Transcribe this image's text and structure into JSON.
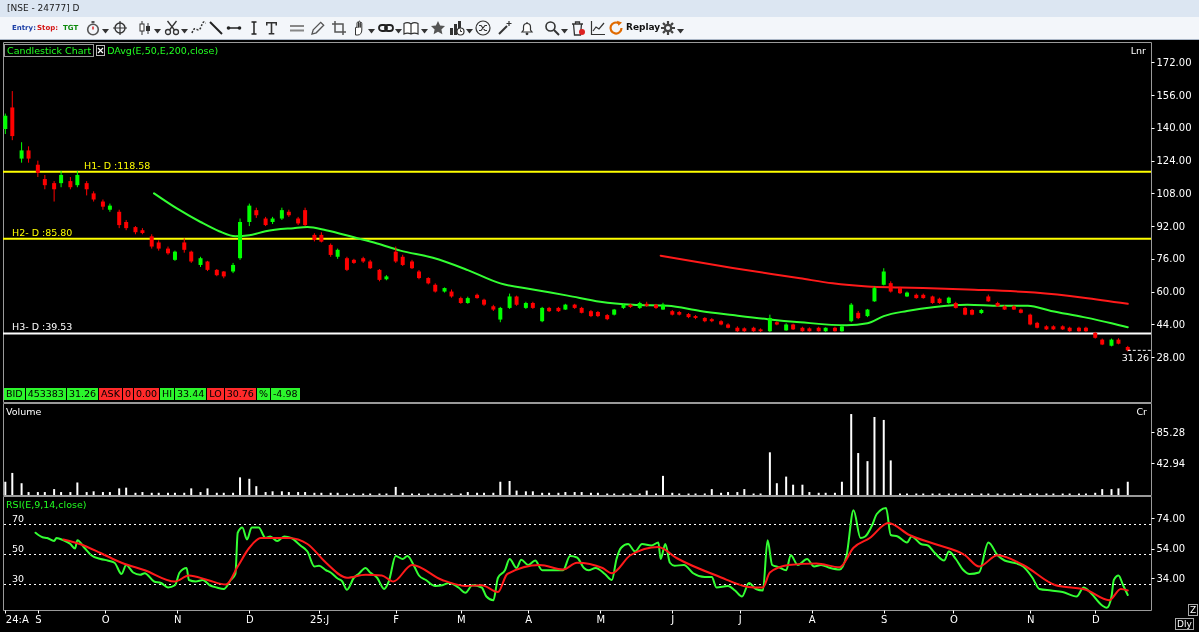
{
  "chart_data": [
    {
      "type": "candlestick",
      "title": "[NSE - 24777] D",
      "x": [
        "2024-08-19",
        "2024-08-22",
        "2024-08-26",
        "2024-08-29",
        "2024-09-02",
        "2024-09-05",
        "2024-09-09",
        "2024-09-12",
        "2024-09-16",
        "2024-09-19",
        "2024-09-23",
        "2024-09-26",
        "2024-09-30",
        "2024-10-03",
        "2024-10-07",
        "2024-10-10",
        "2024-10-14",
        "2024-10-17",
        "2024-10-21",
        "2024-10-24",
        "2024-10-28",
        "2024-10-31",
        "2024-11-04",
        "2024-11-07",
        "2024-11-11",
        "2024-11-14",
        "2024-11-18",
        "2024-11-21",
        "2024-11-25",
        "2024-11-28",
        "2024-12-02",
        "2024-12-05",
        "2024-12-09",
        "2024-12-12",
        "2024-12-16",
        "2024-12-19",
        "2024-12-23",
        "2024-12-26",
        "2024-12-30",
        "2025-01-02",
        "2025-01-06",
        "2025-01-09",
        "2025-01-13",
        "2025-01-16",
        "2025-01-20",
        "2025-01-23",
        "2025-01-27",
        "2025-01-30",
        "2025-02-03",
        "2025-02-06",
        "2025-02-10",
        "2025-02-13",
        "2025-02-17",
        "2025-02-20",
        "2025-02-24",
        "2025-02-27",
        "2025-03-03",
        "2025-03-06",
        "2025-03-10",
        "2025-03-13",
        "2025-03-17",
        "2025-03-20",
        "2025-03-24",
        "2025-03-27",
        "2025-03-31",
        "2025-04-03",
        "2025-04-07",
        "2025-04-10",
        "2025-04-14",
        "2025-04-17",
        "2025-04-21",
        "2025-04-24",
        "2025-04-28",
        "2025-05-01",
        "2025-05-05",
        "2025-05-08",
        "2025-05-12",
        "2025-05-15",
        "2025-05-19",
        "2025-05-22",
        "2025-05-26",
        "2025-05-29",
        "2025-06-02",
        "2025-06-05",
        "2025-06-09",
        "2025-06-12",
        "2025-06-16",
        "2025-06-19",
        "2025-06-23",
        "2025-06-26",
        "2025-06-30",
        "2025-07-03",
        "2025-07-07",
        "2025-07-10",
        "2025-07-14",
        "2025-07-17",
        "2025-07-21",
        "2025-07-24",
        "2025-07-28",
        "2025-07-31",
        "2025-08-04",
        "2025-08-07",
        "2025-08-11",
        "2025-08-14",
        "2025-08-18",
        "2025-08-21",
        "2025-08-25",
        "2025-08-28",
        "2025-09-01",
        "2025-09-04",
        "2025-09-08",
        "2025-09-11",
        "2025-09-15",
        "2025-09-18",
        "2025-09-22",
        "2025-09-25",
        "2025-09-29",
        "2025-10-02",
        "2025-10-06",
        "2025-10-09",
        "2025-10-13",
        "2025-10-16",
        "2025-10-20",
        "2025-10-23",
        "2025-10-27",
        "2025-10-30",
        "2025-11-03",
        "2025-11-06",
        "2025-11-10",
        "2025-11-13",
        "2025-11-17",
        "2025-11-20",
        "2025-11-24",
        "2025-11-27",
        "2025-12-01",
        "2025-12-04",
        "2025-12-08",
        "2025-12-11",
        "2025-12-15"
      ],
      "ohlc": [
        [
          139.5,
          147,
          137,
          146
        ],
        [
          150,
          158,
          134,
          136
        ],
        [
          125,
          133,
          123,
          129
        ],
        [
          129,
          131,
          123,
          125
        ],
        [
          122,
          124,
          116,
          118
        ],
        [
          115,
          117,
          110,
          112
        ],
        [
          113,
          114,
          104,
          110
        ],
        [
          113,
          119,
          111,
          117
        ],
        [
          114,
          116,
          110,
          111
        ],
        [
          112,
          119,
          111,
          117
        ],
        [
          113,
          114,
          107,
          110
        ],
        [
          108,
          109,
          104,
          105
        ],
        [
          104,
          105,
          100,
          101.5
        ],
        [
          100,
          103,
          99,
          102
        ],
        [
          99,
          100,
          91,
          92.5
        ],
        [
          94,
          95,
          90,
          91
        ],
        [
          91.5,
          92,
          88,
          89
        ],
        [
          90,
          91,
          88,
          88.6
        ],
        [
          87,
          88,
          81,
          82
        ],
        [
          84,
          85,
          80,
          81
        ],
        [
          81,
          82,
          78,
          78.7
        ],
        [
          75.5,
          80,
          75,
          79.5
        ],
        [
          84,
          86,
          79,
          80.4
        ],
        [
          79.5,
          80,
          74,
          74.7
        ],
        [
          73,
          77,
          72,
          76.3
        ],
        [
          74.7,
          75,
          70,
          70.6
        ],
        [
          70.6,
          71,
          67.5,
          68
        ],
        [
          69.8,
          70,
          66.5,
          67.4
        ],
        [
          69.8,
          74,
          69,
          73
        ],
        [
          76.3,
          95.7,
          75.5,
          94
        ],
        [
          94,
          103,
          92,
          102
        ],
        [
          99.8,
          101,
          96,
          97.3
        ],
        [
          95.7,
          96.5,
          92,
          92.5
        ],
        [
          94,
          96.5,
          93,
          95.7
        ],
        [
          95.7,
          101,
          95,
          99.8
        ],
        [
          99,
          100,
          96.5,
          97.3
        ],
        [
          95.7,
          96.5,
          92.5,
          93.3
        ],
        [
          99.8,
          101,
          92,
          92.5
        ],
        [
          87.7,
          88.5,
          84.5,
          85.2
        ],
        [
          87.7,
          89,
          84,
          84.4
        ],
        [
          82.8,
          83.5,
          77,
          77.9
        ],
        [
          77,
          81,
          76,
          80.4
        ],
        [
          76.3,
          77,
          70,
          70.6
        ],
        [
          75.5,
          76,
          73.5,
          74
        ],
        [
          76.3,
          77,
          74,
          74.7
        ],
        [
          74.7,
          75.5,
          71,
          71.4
        ],
        [
          70.6,
          71,
          65,
          65.7
        ],
        [
          66,
          68,
          65.5,
          67.4
        ],
        [
          79.5,
          82,
          74,
          74.7
        ],
        [
          77,
          78,
          72.5,
          73
        ],
        [
          74.7,
          75.5,
          71,
          71.4
        ],
        [
          69.8,
          70.5,
          66,
          66.6
        ],
        [
          66.6,
          67,
          63.5,
          64
        ],
        [
          63.3,
          64,
          59.5,
          60
        ],
        [
          60,
          62,
          59.5,
          61.7
        ],
        [
          60,
          61,
          57,
          57.6
        ],
        [
          56.8,
          57.5,
          54,
          54.4
        ],
        [
          54.4,
          57.5,
          54,
          56.8
        ],
        [
          58.4,
          59,
          56.5,
          56.8
        ],
        [
          56,
          56.5,
          53,
          53.6
        ],
        [
          52.8,
          53.5,
          50.5,
          51.2
        ],
        [
          46.3,
          52.5,
          45,
          52
        ],
        [
          52,
          59,
          51.5,
          57.6
        ],
        [
          57.6,
          58,
          53,
          53.6
        ],
        [
          52,
          55,
          51.5,
          54.4
        ],
        [
          54.4,
          55,
          51.5,
          52
        ],
        [
          45.5,
          52.5,
          45,
          52
        ],
        [
          52,
          52.5,
          50,
          50.4
        ],
        [
          52,
          52.5,
          50,
          50.4
        ],
        [
          51.2,
          54,
          51,
          53.6
        ],
        [
          53.6,
          54,
          51.5,
          52
        ],
        [
          52,
          52.5,
          49.3,
          49.6
        ],
        [
          50.4,
          51,
          47.5,
          48
        ],
        [
          50,
          50.5,
          47.5,
          48
        ],
        [
          48.5,
          49,
          46,
          46.5
        ],
        [
          48.7,
          51.5,
          48.3,
          51.2
        ],
        [
          52,
          54,
          51.5,
          53.6
        ],
        [
          53.6,
          54,
          52,
          52.5
        ],
        [
          52,
          55,
          51.5,
          54.4
        ],
        [
          54,
          55,
          52.5,
          53
        ],
        [
          53.6,
          54,
          51.5,
          52
        ],
        [
          51.2,
          54.5,
          51,
          53.6
        ],
        [
          50.4,
          51,
          48.3,
          48.7
        ],
        [
          50,
          50.5,
          48.3,
          48.7
        ],
        [
          49,
          49.5,
          47,
          47.5
        ],
        [
          48,
          48.5,
          46.5,
          47.1
        ],
        [
          47.1,
          47.5,
          45,
          45.5
        ],
        [
          46.5,
          47,
          45,
          45.5
        ],
        [
          45.5,
          46,
          43.5,
          43.9
        ],
        [
          43.9,
          44.5,
          42,
          42.3
        ],
        [
          42.3,
          43,
          40.3,
          40.6
        ],
        [
          42,
          42.5,
          40.3,
          40.6
        ],
        [
          42.3,
          42.8,
          40.3,
          40.6
        ],
        [
          41.5,
          42,
          40.2,
          40.6
        ],
        [
          40.6,
          48.7,
          40.2,
          47.1
        ],
        [
          45,
          45.5,
          43.5,
          43.9
        ],
        [
          41,
          44.5,
          40.8,
          43.9
        ],
        [
          43.9,
          44.3,
          41.2,
          41.5
        ],
        [
          42.3,
          42.8,
          40.4,
          40.6
        ],
        [
          42,
          42.5,
          40.4,
          40.6
        ],
        [
          42.3,
          42.8,
          40.4,
          40.6
        ],
        [
          40.6,
          42.5,
          40.3,
          42.3
        ],
        [
          42.3,
          42.8,
          40.4,
          40.6
        ],
        [
          40.6,
          43.5,
          40.3,
          43
        ],
        [
          45.5,
          54.4,
          45,
          53.6
        ],
        [
          49.6,
          50.5,
          46.5,
          47
        ],
        [
          48,
          51.5,
          47.5,
          51.2
        ],
        [
          55.2,
          62.5,
          55,
          61.7
        ],
        [
          63.3,
          71.4,
          63,
          69.8
        ],
        [
          64.1,
          65,
          59.5,
          60
        ],
        [
          61.7,
          62.3,
          58.8,
          59.2
        ],
        [
          57.6,
          60,
          57.3,
          59.5
        ],
        [
          58.4,
          59,
          56.5,
          56.8
        ],
        [
          58.4,
          59,
          56.5,
          56.8
        ],
        [
          57.6,
          58,
          54,
          54.4
        ],
        [
          56.5,
          57,
          54,
          54.4
        ],
        [
          54.4,
          57.5,
          54,
          57
        ],
        [
          54.4,
          55,
          51.7,
          52
        ],
        [
          52,
          52.5,
          48.4,
          48.7
        ],
        [
          51,
          51.5,
          48.4,
          48.7
        ],
        [
          49.5,
          51.5,
          49,
          51
        ],
        [
          57.6,
          58.5,
          55,
          55.2
        ],
        [
          54.4,
          55,
          52.5,
          52.8
        ],
        [
          52.8,
          53.3,
          51,
          51.2
        ],
        [
          52.8,
          53.3,
          51,
          51.2
        ],
        [
          51.2,
          51.7,
          49.3,
          49.6
        ],
        [
          48.7,
          49.2,
          43.5,
          43.9
        ],
        [
          44.7,
          45.2,
          42,
          42.3
        ],
        [
          43,
          43.5,
          41.2,
          41.5
        ],
        [
          43,
          43.5,
          41.2,
          41.5
        ],
        [
          43,
          43.5,
          41.2,
          41.5
        ],
        [
          42.3,
          42.8,
          40.3,
          40.6
        ],
        [
          42.3,
          42.8,
          40.3,
          40.6
        ],
        [
          42.3,
          42.8,
          40.3,
          40.6
        ],
        [
          39.8,
          40.3,
          37,
          37.4
        ],
        [
          36.5,
          37,
          33.8,
          34.1
        ],
        [
          33.5,
          37,
          33.2,
          36.5
        ],
        [
          36.5,
          37.2,
          34.2,
          34.5
        ],
        [
          32.9,
          33.44,
          30.76,
          31.26
        ]
      ],
      "colors": [
        "#00ff00",
        "#ff0000",
        "#00ff00",
        "#ff0000",
        "#ff0000",
        "#ff0000",
        "#ff0000",
        "#00ff00",
        "#ff0000",
        "#00ff00",
        "#ff0000",
        "#ff0000",
        "#ff0000",
        "#00ff00",
        "#ff0000",
        "#ff0000",
        "#ff0000",
        "#ff0000",
        "#ff0000",
        "#ff0000",
        "#ff0000",
        "#00ff00",
        "#ff0000",
        "#ff0000",
        "#00ff00",
        "#ff0000",
        "#ff0000",
        "#ff0000",
        "#00ff00",
        "#00ff00",
        "#00ff00",
        "#ff0000",
        "#ff0000",
        "#00ff00",
        "#00ff00",
        "#ff0000",
        "#ff0000",
        "#ff0000",
        "#ff0000",
        "#ff0000",
        "#ff0000",
        "#00ff00",
        "#ff0000",
        "#ff0000",
        "#ff0000",
        "#ff0000",
        "#ff0000",
        "#00ff00",
        "#ff0000",
        "#ff0000",
        "#ff0000",
        "#ff0000",
        "#ff0000",
        "#ff0000",
        "#00ff00",
        "#ff0000",
        "#ff0000",
        "#00ff00",
        "#ff0000",
        "#ff0000",
        "#ff0000",
        "#00ff00",
        "#00ff00",
        "#ff0000",
        "#00ff00",
        "#ff0000",
        "#00ff00",
        "#ff0000",
        "#ff0000",
        "#00ff00",
        "#ff0000",
        "#ff0000",
        "#ff0000",
        "#ff0000",
        "#ff0000",
        "#00ff00",
        "#00ff00",
        "#ff0000",
        "#00ff00",
        "#ff0000",
        "#ff0000",
        "#00ff00",
        "#ff0000",
        "#ff0000",
        "#ff0000",
        "#ff0000",
        "#ff0000",
        "#ff0000",
        "#ff0000",
        "#ff0000",
        "#ff0000",
        "#ff0000",
        "#ff0000",
        "#ff0000",
        "#00ff00",
        "#ff0000",
        "#00ff00",
        "#ff0000",
        "#ff0000",
        "#ff0000",
        "#ff0000",
        "#00ff00",
        "#ff0000",
        "#00ff00",
        "#00ff00",
        "#ff0000",
        "#00ff00",
        "#00ff00",
        "#00ff00",
        "#ff0000",
        "#ff0000",
        "#00ff00",
        "#ff0000",
        "#ff0000",
        "#ff0000",
        "#ff0000",
        "#00ff00",
        "#ff0000",
        "#ff0000",
        "#ff0000",
        "#00ff00",
        "#ff0000",
        "#ff0000",
        "#ff0000",
        "#ff0000",
        "#ff0000",
        "#ff0000",
        "#ff0000",
        "#ff0000",
        "#ff0000",
        "#ff0000",
        "#ff0000",
        "#ff0000",
        "#ff0000",
        "#ff0000",
        "#ff0000",
        "#00ff00",
        "#ff0000",
        "#ff0000"
      ],
      "series": [
        {
          "type": "line",
          "color": "#33ff33",
          "x": [
            "2024-10-22",
            "2024-11-01",
            "2024-11-11",
            "2024-11-19",
            "2024-11-26",
            "2024-12-02",
            "2024-12-09",
            "2024-12-21",
            "2024-12-27",
            "2025-01-04",
            "2025-01-16",
            "2025-01-26",
            "2025-02-05",
            "2025-02-19",
            "2025-03-06",
            "2025-03-20",
            "2025-04-03",
            "2025-04-18",
            "2025-05-02",
            "2025-05-16",
            "2025-05-31",
            "2025-06-14",
            "2025-06-28",
            "2025-07-13",
            "2025-07-27",
            "2025-08-16",
            "2025-08-25",
            "2025-09-01",
            "2025-09-11",
            "2025-09-23",
            "2025-10-07",
            "2025-10-21",
            "2025-11-02",
            "2025-11-12",
            "2025-11-26",
            "2025-12-08",
            "2025-12-15"
          ],
          "values": [
            108,
            100.5,
            94,
            89.5,
            87,
            87.5,
            89.5,
            91,
            91.5,
            90,
            86.5,
            83.5,
            80,
            76.5,
            70.5,
            64,
            61,
            58,
            55,
            53.5,
            53,
            50.5,
            48.5,
            46.5,
            45,
            43.5,
            44.5,
            48,
            50.5,
            52.5,
            53.5,
            53,
            53,
            50.5,
            47.5,
            44.5,
            42.5
          ]
        },
        {
          "type": "line",
          "color": "#ff1a1a",
          "x": [
            "2025-05-28",
            "2025-06-28",
            "2025-07-27",
            "2025-08-10",
            "2025-08-25",
            "2025-09-08",
            "2025-10-07",
            "2025-11-05",
            "2025-11-26",
            "2025-12-15"
          ],
          "values": [
            77.5,
            71.5,
            66.5,
            64,
            62.5,
            62,
            61,
            59.5,
            57,
            54
          ]
        }
      ],
      "ref_lines": [
        {
          "axis": "y",
          "value": 118.58,
          "label": "H1- D :118.58",
          "color": "#ffff00"
        },
        {
          "axis": "y",
          "value": 85.8,
          "label": "H2- D :85.80",
          "color": "#ffff00"
        },
        {
          "axis": "y",
          "value": 39.53,
          "label": "H3- D :39.53",
          "color": "#ffffff"
        }
      ],
      "annotations": [
        "Entry:",
        "Stop:",
        "TGT",
        "Replay",
        "Candlestick Chart",
        "DAvg(E,50,E,200,close)",
        "Lnr",
        "BID",
        "453383",
        "31.26",
        "ASK",
        "0",
        "0.00",
        "HI",
        "33.44",
        "LO",
        "30.76",
        "%",
        "-4.98",
        {
          "text": "31.26",
          "x": "2025-12-15",
          "y": 31.26
        }
      ],
      "xlim": [
        "2024-08-18",
        "2025-12-25"
      ],
      "ylim": [
        6,
        182
      ],
      "yticks": [
        {
          "value": 28,
          "label": "28.00"
        },
        {
          "value": 44,
          "label": "44.00"
        },
        {
          "value": 60,
          "label": "60.00"
        },
        {
          "value": 76,
          "label": "76.00"
        },
        {
          "value": 92,
          "label": "92.00"
        },
        {
          "value": 108,
          "label": "108.00"
        },
        {
          "value": 124,
          "label": "124.00"
        },
        {
          "value": 140,
          "label": "140.00"
        },
        {
          "value": 156,
          "label": "156.00"
        },
        {
          "value": 172,
          "label": "172.00"
        }
      ],
      "tick_labels": "y"
    },
    {
      "type": "bar",
      "color": "#ffffff",
      "x": [
        "2024-08-19",
        "2024-08-22",
        "2024-08-26",
        "2024-08-29",
        "2024-09-02",
        "2024-09-05",
        "2024-09-09",
        "2024-09-12",
        "2024-09-16",
        "2024-09-19",
        "2024-09-23",
        "2024-09-26",
        "2024-09-30",
        "2024-10-03",
        "2024-10-07",
        "2024-10-10",
        "2024-10-14",
        "2024-10-17",
        "2024-10-21",
        "2024-10-24",
        "2024-10-28",
        "2024-10-31",
        "2024-11-04",
        "2024-11-07",
        "2024-11-11",
        "2024-11-14",
        "2024-11-18",
        "2024-11-21",
        "2024-11-25",
        "2024-11-28",
        "2024-12-02",
        "2024-12-05",
        "2024-12-09",
        "2024-12-12",
        "2024-12-16",
        "2024-12-19",
        "2024-12-23",
        "2024-12-26",
        "2024-12-30",
        "2025-01-02",
        "2025-01-06",
        "2025-01-09",
        "2025-01-13",
        "2025-01-16",
        "2025-01-20",
        "2025-01-23",
        "2025-01-27",
        "2025-01-30",
        "2025-02-03",
        "2025-02-06",
        "2025-02-10",
        "2025-02-13",
        "2025-02-17",
        "2025-02-20",
        "2025-02-24",
        "2025-02-27",
        "2025-03-03",
        "2025-03-06",
        "2025-03-10",
        "2025-03-13",
        "2025-03-17",
        "2025-03-20",
        "2025-03-24",
        "2025-03-27",
        "2025-03-31",
        "2025-04-03",
        "2025-04-07",
        "2025-04-10",
        "2025-04-14",
        "2025-04-17",
        "2025-04-21",
        "2025-04-24",
        "2025-04-28",
        "2025-05-01",
        "2025-05-05",
        "2025-05-08",
        "2025-05-12",
        "2025-05-15",
        "2025-05-19",
        "2025-05-22",
        "2025-05-26",
        "2025-05-29",
        "2025-06-02",
        "2025-06-05",
        "2025-06-09",
        "2025-06-12",
        "2025-06-16",
        "2025-06-19",
        "2025-06-23",
        "2025-06-26",
        "2025-06-30",
        "2025-07-03",
        "2025-07-07",
        "2025-07-10",
        "2025-07-14",
        "2025-07-17",
        "2025-07-21",
        "2025-07-24",
        "2025-07-28",
        "2025-07-31",
        "2025-08-04",
        "2025-08-07",
        "2025-08-11",
        "2025-08-14",
        "2025-08-18",
        "2025-08-21",
        "2025-08-25",
        "2025-08-28",
        "2025-09-01",
        "2025-09-04",
        "2025-09-08",
        "2025-09-11",
        "2025-09-15",
        "2025-09-18",
        "2025-09-22",
        "2025-09-25",
        "2025-09-29",
        "2025-10-02",
        "2025-10-06",
        "2025-10-09",
        "2025-10-13",
        "2025-10-16",
        "2025-10-20",
        "2025-10-23",
        "2025-10-27",
        "2025-10-30",
        "2025-11-03",
        "2025-11-06",
        "2025-11-10",
        "2025-11-13",
        "2025-11-17",
        "2025-11-20",
        "2025-11-24",
        "2025-11-27",
        "2025-12-01",
        "2025-12-04",
        "2025-12-08",
        "2025-12-11",
        "2025-12-15"
      ],
      "values": [
        18,
        30,
        16,
        4,
        4,
        4,
        8,
        4,
        4,
        17,
        4,
        5,
        4,
        4,
        9,
        10,
        3,
        4,
        3,
        3,
        3,
        3,
        3,
        9,
        4,
        9,
        3,
        3,
        3,
        24,
        22,
        12,
        4,
        5,
        5,
        4,
        4,
        4,
        3,
        3,
        3,
        3,
        2,
        2,
        2,
        2,
        2,
        2,
        11,
        3,
        2,
        2,
        2,
        2,
        2,
        2,
        2,
        4,
        3,
        3,
        3,
        18,
        19,
        6,
        5,
        5,
        3,
        3,
        3,
        4,
        4,
        4,
        3,
        3,
        2,
        2,
        2,
        2,
        2,
        6,
        2,
        26,
        3,
        2,
        2,
        2,
        2,
        8,
        3,
        4,
        4,
        8,
        2,
        2,
        58,
        16,
        25,
        14,
        14,
        4,
        3,
        3,
        3,
        18,
        110,
        57,
        46,
        106,
        102,
        47,
        2,
        2,
        2,
        2,
        2,
        2,
        2,
        2,
        2,
        2,
        2,
        2,
        2,
        2,
        2,
        2,
        2,
        2,
        2,
        2,
        2,
        2,
        2,
        2,
        3,
        8,
        8,
        9,
        18
      ],
      "annotations": [
        "Volume",
        "Cr"
      ],
      "xlim": [
        "2024-08-18",
        "2025-12-25"
      ],
      "ylim": [
        0,
        125
      ],
      "yticks": [
        42.94,
        85.28
      ],
      "tick_labels": "y"
    },
    {
      "type": "line",
      "series": [
        {
          "color": "#33ff33",
          "x": [
            "2024-09-01",
            "2024-09-04",
            "2024-09-06",
            "2024-09-09",
            "2024-09-10",
            "2024-09-13",
            "2024-09-16",
            "2024-09-18",
            "2024-09-19",
            "2024-09-22",
            "2024-09-25",
            "2024-09-29",
            "2024-10-02",
            "2024-10-05",
            "2024-10-08",
            "2024-10-10",
            "2024-10-13",
            "2024-10-16",
            "2024-10-18",
            "2024-10-22",
            "2024-10-25",
            "2024-10-28",
            "2024-10-31",
            "2024-11-02",
            "2024-11-05",
            "2024-11-06",
            "2024-11-09",
            "2024-11-12",
            "2024-11-15",
            "2024-11-18",
            "2024-11-21",
            "2024-11-24",
            "2024-11-26",
            "2024-11-27",
            "2024-11-29",
            "2024-12-01",
            "2024-12-03",
            "2024-12-06",
            "2024-12-09",
            "2024-12-11",
            "2024-12-14",
            "2024-12-17",
            "2024-12-20",
            "2024-12-24",
            "2024-12-27",
            "2024-12-30",
            "2025-01-01",
            "2025-01-04",
            "2025-01-06",
            "2025-01-09",
            "2025-01-11",
            "2025-01-13",
            "2025-01-16",
            "2025-01-18",
            "2025-01-21",
            "2025-01-23",
            "2025-01-26",
            "2025-01-29",
            "2025-01-31",
            "2025-02-03",
            "2025-02-06",
            "2025-02-08",
            "2025-02-11",
            "2025-02-13",
            "2025-02-16",
            "2025-02-20",
            "2025-02-23",
            "2025-02-26",
            "2025-03-02",
            "2025-03-05",
            "2025-03-08",
            "2025-03-12",
            "2025-03-14",
            "2025-03-17",
            "2025-03-19",
            "2025-03-22",
            "2025-03-24",
            "2025-03-27",
            "2025-03-29",
            "2025-04-01",
            "2025-04-04",
            "2025-04-07",
            "2025-04-12",
            "2025-04-16",
            "2025-04-19",
            "2025-04-22",
            "2025-04-25",
            "2025-04-27",
            "2025-04-30",
            "2025-05-04",
            "2025-05-07",
            "2025-05-09",
            "2025-05-11",
            "2025-05-14",
            "2025-05-17",
            "2025-05-20",
            "2025-05-24",
            "2025-05-27",
            "2025-05-28",
            "2025-05-30",
            "2025-06-01",
            "2025-06-03",
            "2025-06-07",
            "2025-06-11",
            "2025-06-16",
            "2025-06-19",
            "2025-06-21",
            "2025-06-26",
            "2025-06-29",
            "2025-07-02",
            "2025-07-05",
            "2025-07-08",
            "2025-07-11",
            "2025-07-13",
            "2025-07-15",
            "2025-07-18",
            "2025-07-21",
            "2025-07-23",
            "2025-07-26",
            "2025-07-30",
            "2025-08-02",
            "2025-08-05",
            "2025-08-09",
            "2025-08-13",
            "2025-08-16",
            "2025-08-19",
            "2025-08-22",
            "2025-08-24",
            "2025-08-27",
            "2025-08-29",
            "2025-09-02",
            "2025-09-04",
            "2025-09-07",
            "2025-09-11",
            "2025-09-13",
            "2025-09-17",
            "2025-09-20",
            "2025-09-23",
            "2025-09-27",
            "2025-09-29",
            "2025-10-02",
            "2025-10-05",
            "2025-10-08",
            "2025-10-12",
            "2025-10-16",
            "2025-10-20",
            "2025-10-23",
            "2025-10-27",
            "2025-10-31",
            "2025-11-04",
            "2025-11-07",
            "2025-11-12",
            "2025-11-17",
            "2025-11-23",
            "2025-11-26",
            "2025-11-29",
            "2025-12-04",
            "2025-12-06",
            "2025-12-08",
            "2025-12-09",
            "2025-12-11",
            "2025-12-13",
            "2025-12-15"
          ],
          "values": [
            64.5,
            61.5,
            61,
            59,
            61,
            59.5,
            57,
            54,
            59.5,
            54.5,
            49.5,
            47,
            46,
            44.5,
            37,
            43,
            38,
            36.5,
            37.5,
            32,
            31,
            28,
            29.5,
            38,
            41,
            33,
            32,
            33,
            29.5,
            28,
            27,
            33,
            37,
            64.5,
            68,
            60,
            68,
            68,
            61,
            62,
            59,
            62,
            61,
            56,
            52,
            42,
            42.5,
            39.5,
            38,
            34,
            32,
            26.5,
            34.5,
            37,
            41,
            38,
            34.5,
            27,
            32,
            49,
            47,
            49,
            42,
            36,
            33,
            29,
            29.5,
            31,
            28,
            24.5,
            29.5,
            28,
            22,
            19.5,
            34.5,
            39.5,
            47,
            41,
            46.5,
            43,
            46,
            39.5,
            39.5,
            39.5,
            49,
            48,
            41,
            39.5,
            41,
            37,
            33,
            47,
            54.5,
            57,
            52,
            57,
            56,
            58,
            47,
            57,
            44.5,
            42.5,
            43,
            37.5,
            35,
            35,
            28,
            29,
            26,
            22,
            31,
            27,
            26,
            59.5,
            43,
            41.5,
            39.5,
            49.5,
            43,
            47,
            42,
            43,
            41,
            40,
            49.5,
            79.5,
            61,
            62,
            69.5,
            77,
            81,
            63,
            62,
            58,
            62,
            57,
            56,
            51,
            46,
            52,
            47,
            40,
            37,
            38,
            58,
            49.5,
            46,
            44.5,
            42,
            34.5,
            27,
            26,
            25,
            22,
            28,
            24.5,
            16,
            14.5,
            22,
            33,
            36,
            29.5,
            23
          ]
        },
        {
          "color": "#ff1a1a",
          "x": [
            "2024-09-13",
            "2024-09-20",
            "2024-09-29",
            "2024-10-08",
            "2024-10-18",
            "2024-10-31",
            "2024-11-06",
            "2024-11-14",
            "2024-11-22",
            "2024-11-27",
            "2024-12-02",
            "2024-12-07",
            "2024-12-19",
            "2024-12-27",
            "2025-01-04",
            "2025-01-13",
            "2025-01-21",
            "2025-01-28",
            "2025-02-02",
            "2025-02-10",
            "2025-02-23",
            "2025-03-05",
            "2025-03-12",
            "2025-03-19",
            "2025-03-23",
            "2025-04-06",
            "2025-04-16",
            "2025-04-22",
            "2025-05-03",
            "2025-05-07",
            "2025-05-15",
            "2025-05-27",
            "2025-06-04",
            "2025-06-21",
            "2025-07-07",
            "2025-07-11",
            "2025-07-14",
            "2025-07-22",
            "2025-08-03",
            "2025-08-13",
            "2025-08-19",
            "2025-08-26",
            "2025-09-03",
            "2025-09-12",
            "2025-09-23",
            "2025-10-06",
            "2025-10-12",
            "2025-10-20",
            "2025-10-31",
            "2025-11-14",
            "2025-11-27",
            "2025-12-07",
            "2025-12-12",
            "2025-12-15"
          ],
          "values": [
            60,
            57,
            51,
            44.5,
            39.5,
            32,
            36,
            33,
            30,
            42,
            54.5,
            61,
            61,
            57,
            44.5,
            34.5,
            36.5,
            36,
            32,
            43,
            33,
            29,
            29.5,
            25,
            37,
            43,
            40,
            44.5,
            41,
            37.5,
            49.5,
            55,
            47.5,
            36,
            28,
            28,
            38,
            43,
            44,
            41.5,
            54.5,
            61,
            71,
            63,
            57,
            49.5,
            42,
            49.5,
            43,
            29.5,
            26.5,
            19.5,
            27,
            26
          ]
        }
      ],
      "ref_lines": [
        {
          "axis": "y",
          "value": 70,
          "label": "70",
          "color": "#ffffff",
          "line_style": "dotted"
        },
        {
          "axis": "y",
          "value": 50,
          "label": "50",
          "color": "#ffffff",
          "line_style": "dotted"
        },
        {
          "axis": "y",
          "value": 30,
          "label": "30",
          "color": "#ffffff",
          "line_style": "dotted"
        }
      ],
      "annotations": [
        "RSI(E,9,14,close)",
        "Z",
        "Dly"
      ],
      "xlim": [
        "2024-08-18",
        "2025-12-25"
      ],
      "xticks": [
        {
          "value": "2024-08-19",
          "label": "24:A"
        },
        {
          "value": "2024-09-02",
          "label": "S"
        },
        {
          "value": "2024-10-01",
          "label": "O"
        },
        {
          "value": "2024-11-01",
          "label": "N"
        },
        {
          "value": "2024-12-02",
          "label": "D"
        },
        {
          "value": "2025-01-01",
          "label": "25:J"
        },
        {
          "value": "2025-02-03",
          "label": "F"
        },
        {
          "value": "2025-03-03",
          "label": "M"
        },
        {
          "value": "2025-04-01",
          "label": "A"
        },
        {
          "value": "2025-05-02",
          "label": "M"
        },
        {
          "value": "2025-06-02",
          "label": "J"
        },
        {
          "value": "2025-07-01",
          "label": "J"
        },
        {
          "value": "2025-08-01",
          "label": "A"
        },
        {
          "value": "2025-09-01",
          "label": "S"
        },
        {
          "value": "2025-10-01",
          "label": "O"
        },
        {
          "value": "2025-11-03",
          "label": "N"
        },
        {
          "value": "2025-12-01",
          "label": "D"
        }
      ],
      "ylim": [
        13,
        89
      ],
      "yticks": [
        {
          "value": 34,
          "label": "34.00"
        },
        {
          "value": 54,
          "label": "54.00"
        },
        {
          "value": 74,
          "label": "74.00"
        }
      ]
    }
  ]
}
